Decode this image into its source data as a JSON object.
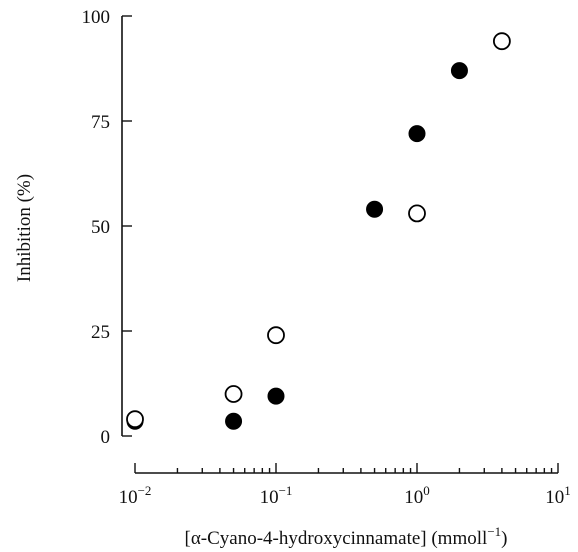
{
  "chart_data": {
    "type": "scatter",
    "title": "",
    "ylabel": "Inhibition (%)",
    "xlabel_prefix": "[α-Cyano-4-hydroxycinnamate] (mmoll",
    "xlabel_sup": "−1",
    "xlabel_suffix": ")",
    "xscale": "log",
    "xlim": [
      0.01,
      10
    ],
    "ylim": [
      0,
      100
    ],
    "grid": false,
    "legend": "none",
    "y_ticks": [
      {
        "value": 0,
        "label": "0"
      },
      {
        "value": 25,
        "label": "25"
      },
      {
        "value": 50,
        "label": "50"
      },
      {
        "value": 75,
        "label": "75"
      },
      {
        "value": 100,
        "label": "100"
      }
    ],
    "x_ticks": [
      {
        "value": 0.01,
        "base": "10",
        "exp": "−2"
      },
      {
        "value": 0.1,
        "base": "10",
        "exp": "−1"
      },
      {
        "value": 1,
        "base": "10",
        "exp": "0"
      },
      {
        "value": 10,
        "base": "10",
        "exp": "1"
      }
    ],
    "series": [
      {
        "marker": "filled-circle",
        "color": "#000000",
        "points": [
          {
            "x": 0.01,
            "y": 3.5
          },
          {
            "x": 0.05,
            "y": 3.5
          },
          {
            "x": 0.1,
            "y": 9.5
          },
          {
            "x": 0.5,
            "y": 54
          },
          {
            "x": 1,
            "y": 72
          },
          {
            "x": 2,
            "y": 87
          }
        ]
      },
      {
        "marker": "open-circle",
        "color": "#000000",
        "points": [
          {
            "x": 0.01,
            "y": 4
          },
          {
            "x": 0.05,
            "y": 10
          },
          {
            "x": 0.1,
            "y": 24
          },
          {
            "x": 1,
            "y": 53
          },
          {
            "x": 4,
            "y": 94
          }
        ]
      }
    ]
  }
}
